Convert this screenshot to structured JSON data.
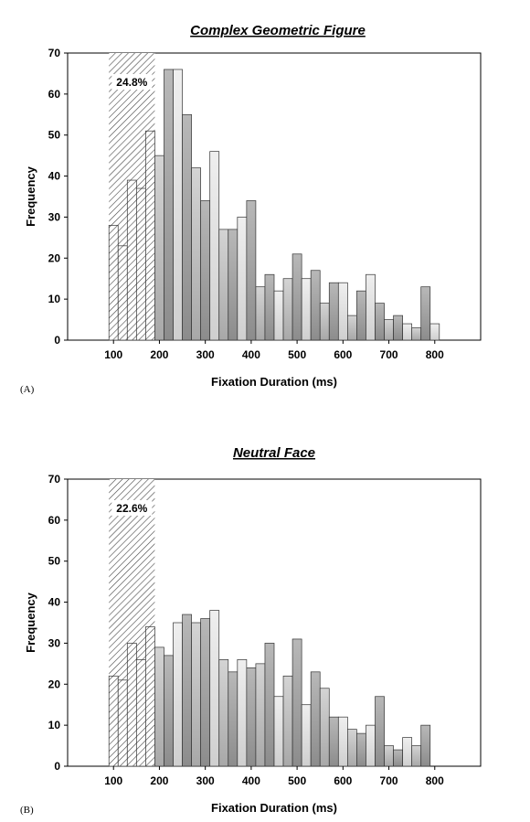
{
  "chart_data": [
    {
      "type": "bar",
      "panel_label": "(A)",
      "title": "Complex Geometric Figure",
      "xlabel": "Fixation Duration (ms)",
      "ylabel": "Frequency",
      "xlim": [
        0,
        900
      ],
      "ylim": [
        0,
        70
      ],
      "x_ticks": [
        100,
        200,
        300,
        400,
        500,
        600,
        700,
        800
      ],
      "y_ticks": [
        0,
        10,
        20,
        30,
        40,
        50,
        60,
        70
      ],
      "grid": false,
      "bin_width": 20,
      "x": [
        100,
        120,
        140,
        160,
        180,
        200,
        220,
        240,
        260,
        280,
        300,
        320,
        340,
        360,
        380,
        400,
        420,
        440,
        460,
        480,
        500,
        520,
        540,
        560,
        580,
        600,
        620,
        640,
        660,
        680,
        700,
        720,
        740,
        760,
        780,
        800
      ],
      "values": [
        28,
        23,
        39,
        37,
        51,
        45,
        66,
        66,
        55,
        42,
        34,
        46,
        27,
        27,
        30,
        34,
        13,
        16,
        12,
        15,
        21,
        15,
        17,
        9,
        14,
        14,
        6,
        12,
        16,
        9,
        5,
        6,
        4,
        3,
        13,
        4
      ],
      "highlight": {
        "range": [
          90,
          190
        ],
        "pattern": "diagonal hatch",
        "label": "24.8%"
      }
    },
    {
      "type": "bar",
      "panel_label": "(B)",
      "title": "Neutral Face",
      "xlabel": "Fixation Duration (ms)",
      "ylabel": "Frequency",
      "xlim": [
        0,
        900
      ],
      "ylim": [
        0,
        70
      ],
      "x_ticks": [
        100,
        200,
        300,
        400,
        500,
        600,
        700,
        800
      ],
      "y_ticks": [
        0,
        10,
        20,
        30,
        40,
        50,
        60,
        70
      ],
      "grid": false,
      "bin_width": 20,
      "x": [
        100,
        120,
        140,
        160,
        180,
        200,
        220,
        240,
        260,
        280,
        300,
        320,
        340,
        360,
        380,
        400,
        420,
        440,
        460,
        480,
        500,
        520,
        540,
        560,
        580,
        600,
        620,
        640,
        660,
        680,
        700,
        720,
        740,
        760,
        780
      ],
      "values": [
        22,
        21,
        30,
        26,
        34,
        29,
        27,
        35,
        37,
        35,
        36,
        38,
        26,
        23,
        26,
        24,
        25,
        30,
        17,
        22,
        31,
        15,
        23,
        19,
        12,
        12,
        9,
        8,
        10,
        17,
        5,
        4,
        7,
        5,
        10
      ],
      "highlight": {
        "range": [
          90,
          190
        ],
        "pattern": "diagonal hatch",
        "label": "22.6%"
      }
    }
  ]
}
